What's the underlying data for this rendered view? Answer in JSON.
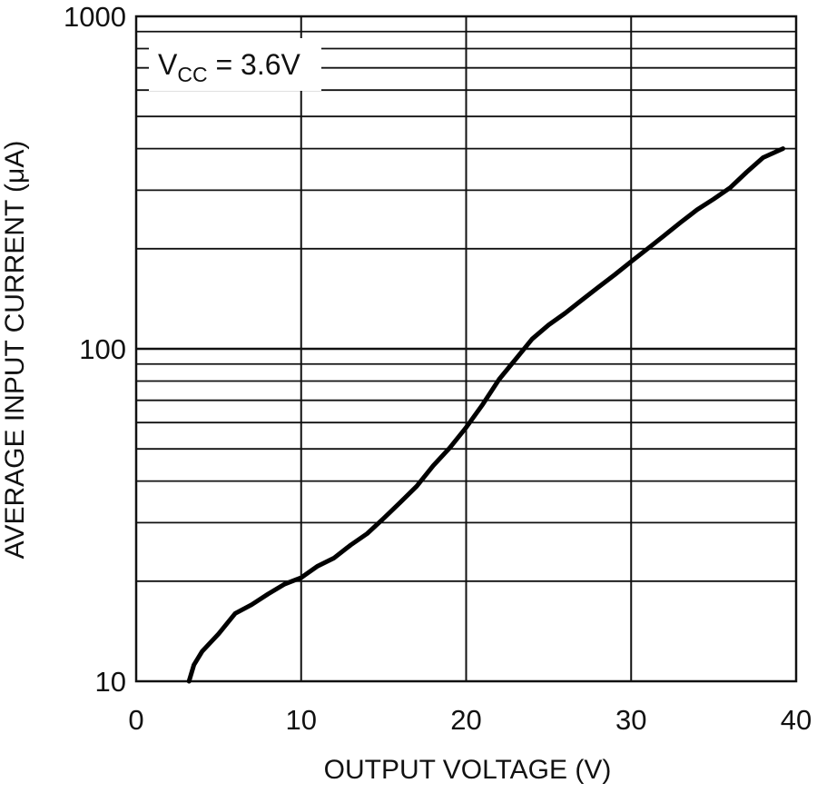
{
  "chart_data": {
    "type": "line",
    "xlabel": "OUTPUT VOLTAGE (V)",
    "ylabel": "AVERAGE INPUT CURRENT (μA)",
    "xlim": [
      0,
      40
    ],
    "ylim": [
      10,
      1000
    ],
    "y_scale": "log",
    "grid": true,
    "x_ticks": [
      "0",
      "10",
      "20",
      "30",
      "40"
    ],
    "y_ticks": [
      "10",
      "100",
      "1000"
    ],
    "annotation": {
      "main": "V",
      "subscript": "CC",
      "rest": " = 3.6V"
    },
    "series": [
      {
        "color": "#000000",
        "x": [
          3.2,
          3.5,
          4,
          5,
          6,
          7,
          8,
          9,
          10,
          11,
          12,
          13,
          14,
          15,
          16,
          17,
          18,
          19,
          20,
          21,
          22,
          23,
          24,
          25,
          26,
          27,
          28,
          29,
          30,
          31,
          32,
          33,
          34,
          35,
          36,
          37,
          38,
          39.2
        ],
        "y": [
          10,
          11.2,
          12.3,
          13.9,
          16,
          17,
          18.3,
          19.6,
          20.5,
          22.2,
          23.5,
          25.7,
          27.8,
          30.9,
          34.5,
          38.6,
          44.5,
          50.3,
          58,
          68,
          81,
          93,
          107,
          118,
          128,
          140,
          153,
          167,
          183,
          200,
          219,
          240,
          262,
          282,
          305,
          340,
          376,
          400
        ]
      }
    ]
  }
}
